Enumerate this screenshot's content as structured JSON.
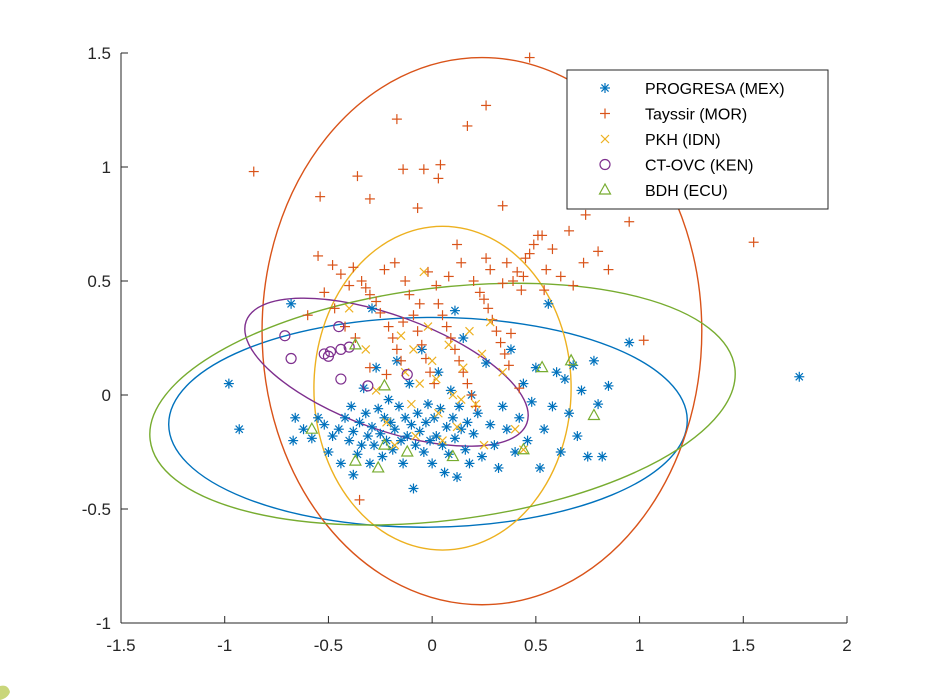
{
  "chart_data": {
    "type": "scatter",
    "title": "",
    "xlabel": "",
    "ylabel": "",
    "xlim": [
      -1.5,
      2
    ],
    "ylim": [
      -1,
      1.5
    ],
    "xticks": [
      "-1.5",
      "-1",
      "-0.5",
      "0",
      "0.5",
      "1",
      "1.5",
      "2"
    ],
    "yticks": [
      "-1",
      "-0.5",
      "0",
      "0.5",
      "1",
      "1.5"
    ],
    "grid": false,
    "legend_position": "top-right",
    "series": [
      {
        "name": "PROGRESA (MEX)",
        "marker": "asterisk",
        "color": "#0072BD",
        "points": [
          [
            -0.98,
            0.05
          ],
          [
            -0.93,
            -0.15
          ],
          [
            -0.68,
            0.4
          ],
          [
            -0.66,
            -0.1
          ],
          [
            -0.67,
            -0.2
          ],
          [
            -0.62,
            -0.15
          ],
          [
            -0.58,
            -0.19
          ],
          [
            -0.55,
            -0.1
          ],
          [
            -0.52,
            -0.13
          ],
          [
            -0.5,
            -0.25
          ],
          [
            -0.48,
            -0.18
          ],
          [
            -0.45,
            -0.15
          ],
          [
            -0.44,
            -0.3
          ],
          [
            -0.42,
            -0.1
          ],
          [
            -0.4,
            -0.2
          ],
          [
            -0.39,
            -0.05
          ],
          [
            -0.38,
            -0.16
          ],
          [
            -0.36,
            -0.26
          ],
          [
            -0.35,
            -0.12
          ],
          [
            -0.34,
            -0.22
          ],
          [
            -0.33,
            0.03
          ],
          [
            -0.32,
            -0.08
          ],
          [
            -0.31,
            -0.18
          ],
          [
            -0.3,
            -0.3
          ],
          [
            -0.29,
            -0.14
          ],
          [
            -0.28,
            -0.22
          ],
          [
            -0.27,
            0.12
          ],
          [
            -0.26,
            -0.06
          ],
          [
            -0.25,
            -0.17
          ],
          [
            -0.24,
            -0.27
          ],
          [
            -0.23,
            -0.1
          ],
          [
            -0.22,
            -0.2
          ],
          [
            -0.21,
            -0.02
          ],
          [
            -0.2,
            -0.12
          ],
          [
            -0.19,
            -0.24
          ],
          [
            -0.18,
            -0.15
          ],
          [
            -0.17,
            0.15
          ],
          [
            -0.16,
            -0.05
          ],
          [
            -0.15,
            -0.2
          ],
          [
            -0.14,
            -0.3
          ],
          [
            -0.13,
            -0.1
          ],
          [
            -0.12,
            -0.18
          ],
          [
            -0.11,
            0.05
          ],
          [
            -0.1,
            -0.13
          ],
          [
            -0.09,
            -0.41
          ],
          [
            -0.08,
            -0.22
          ],
          [
            -0.07,
            -0.08
          ],
          [
            -0.06,
            -0.16
          ],
          [
            -0.05,
            0.2
          ],
          [
            -0.04,
            -0.25
          ],
          [
            -0.03,
            -0.12
          ],
          [
            -0.02,
            -0.04
          ],
          [
            -0.01,
            -0.2
          ],
          [
            0.0,
            -0.3
          ],
          [
            0.01,
            -0.1
          ],
          [
            0.02,
            -0.18
          ],
          [
            0.03,
            0.1
          ],
          [
            0.04,
            -0.06
          ],
          [
            0.05,
            -0.22
          ],
          [
            0.06,
            -0.34
          ],
          [
            0.07,
            -0.14
          ],
          [
            0.08,
            -0.26
          ],
          [
            0.09,
            0.02
          ],
          [
            0.1,
            -0.1
          ],
          [
            0.11,
            -0.19
          ],
          [
            0.12,
            -0.36
          ],
          [
            0.13,
            -0.05
          ],
          [
            0.14,
            -0.15
          ],
          [
            0.15,
            0.25
          ],
          [
            0.16,
            -0.24
          ],
          [
            0.17,
            -0.12
          ],
          [
            0.18,
            -0.3
          ],
          [
            0.19,
            0.0
          ],
          [
            0.2,
            -0.17
          ],
          [
            0.22,
            -0.08
          ],
          [
            0.24,
            -0.27
          ],
          [
            0.26,
            0.14
          ],
          [
            0.28,
            -0.13
          ],
          [
            0.3,
            -0.22
          ],
          [
            0.32,
            -0.32
          ],
          [
            0.34,
            -0.05
          ],
          [
            0.36,
            -0.15
          ],
          [
            0.38,
            0.2
          ],
          [
            0.4,
            -0.25
          ],
          [
            0.42,
            -0.1
          ],
          [
            0.44,
            0.05
          ],
          [
            0.46,
            -0.2
          ],
          [
            0.48,
            -0.03
          ],
          [
            0.5,
            0.12
          ],
          [
            0.52,
            -0.32
          ],
          [
            0.54,
            -0.15
          ],
          [
            0.56,
            0.4
          ],
          [
            0.58,
            -0.05
          ],
          [
            0.6,
            0.1
          ],
          [
            0.62,
            -0.25
          ],
          [
            0.64,
            0.07
          ],
          [
            0.66,
            -0.08
          ],
          [
            0.68,
            0.13
          ],
          [
            0.7,
            -0.18
          ],
          [
            0.72,
            0.02
          ],
          [
            0.75,
            -0.27
          ],
          [
            0.78,
            0.15
          ],
          [
            0.8,
            -0.04
          ],
          [
            0.82,
            -0.27
          ],
          [
            0.85,
            0.04
          ],
          [
            0.95,
            0.23
          ],
          [
            1.77,
            0.08
          ],
          [
            -0.29,
            0.38
          ],
          [
            0.11,
            0.37
          ],
          [
            -0.38,
            -0.35
          ]
        ]
      },
      {
        "name": "Tayssir (MOR)",
        "marker": "plus",
        "color": "#D95319",
        "points": [
          [
            -0.86,
            0.98
          ],
          [
            -0.54,
            0.87
          ],
          [
            -0.36,
            0.96
          ],
          [
            -0.3,
            0.86
          ],
          [
            -0.17,
            1.21
          ],
          [
            -0.14,
            0.99
          ],
          [
            -0.07,
            0.82
          ],
          [
            -0.04,
            0.99
          ],
          [
            0.03,
            0.95
          ],
          [
            0.04,
            1.01
          ],
          [
            0.17,
            1.18
          ],
          [
            0.26,
            1.27
          ],
          [
            0.34,
            0.83
          ],
          [
            0.47,
            1.48
          ],
          [
            0.53,
            0.7
          ],
          [
            0.66,
            0.72
          ],
          [
            0.74,
            0.79
          ],
          [
            0.95,
            0.76
          ],
          [
            1.55,
            0.67
          ],
          [
            -0.55,
            0.61
          ],
          [
            -0.48,
            0.57
          ],
          [
            -0.44,
            0.53
          ],
          [
            -0.38,
            0.56
          ],
          [
            -0.34,
            0.5
          ],
          [
            -0.32,
            0.47
          ],
          [
            -0.3,
            0.44
          ],
          [
            -0.27,
            0.41
          ],
          [
            -0.25,
            0.36
          ],
          [
            -0.23,
            0.55
          ],
          [
            -0.21,
            0.3
          ],
          [
            -0.19,
            0.25
          ],
          [
            -0.17,
            0.2
          ],
          [
            -0.15,
            0.15
          ],
          [
            -0.13,
            0.5
          ],
          [
            -0.11,
            0.44
          ],
          [
            -0.09,
            0.35
          ],
          [
            -0.07,
            0.28
          ],
          [
            -0.05,
            0.22
          ],
          [
            -0.03,
            0.16
          ],
          [
            -0.01,
            0.1
          ],
          [
            0.01,
            0.05
          ],
          [
            0.03,
            0.4
          ],
          [
            0.05,
            0.35
          ],
          [
            0.07,
            0.3
          ],
          [
            0.09,
            0.25
          ],
          [
            0.11,
            0.2
          ],
          [
            0.13,
            0.15
          ],
          [
            0.15,
            0.1
          ],
          [
            0.17,
            0.05
          ],
          [
            0.19,
            0.0
          ],
          [
            0.21,
            -0.05
          ],
          [
            0.23,
            0.45
          ],
          [
            0.25,
            0.42
          ],
          [
            0.27,
            0.38
          ],
          [
            0.29,
            0.33
          ],
          [
            0.31,
            0.28
          ],
          [
            0.33,
            0.23
          ],
          [
            0.35,
            0.18
          ],
          [
            0.37,
            0.13
          ],
          [
            0.39,
            0.5
          ],
          [
            0.41,
            0.54
          ],
          [
            0.43,
            0.46
          ],
          [
            0.45,
            0.6
          ],
          [
            0.47,
            0.62
          ],
          [
            0.49,
            0.66
          ],
          [
            0.51,
            0.7
          ],
          [
            0.55,
            0.55
          ],
          [
            0.58,
            0.64
          ],
          [
            0.62,
            0.52
          ],
          [
            0.68,
            0.48
          ],
          [
            0.73,
            0.58
          ],
          [
            0.8,
            0.63
          ],
          [
            0.85,
            0.55
          ],
          [
            1.02,
            0.24
          ],
          [
            -0.52,
            0.45
          ],
          [
            -0.47,
            0.38
          ],
          [
            -0.42,
            0.3
          ],
          [
            -0.37,
            0.25
          ],
          [
            -0.35,
            -0.46
          ],
          [
            -0.3,
            0.12
          ],
          [
            -0.22,
            0.09
          ],
          [
            -0.14,
            0.32
          ],
          [
            -0.06,
            0.4
          ],
          [
            -0.02,
            0.54
          ],
          [
            0.02,
            0.48
          ],
          [
            0.08,
            0.52
          ],
          [
            0.14,
            0.58
          ],
          [
            0.2,
            0.5
          ],
          [
            0.28,
            0.55
          ],
          [
            0.34,
            0.49
          ],
          [
            0.38,
            0.27
          ],
          [
            0.42,
            0.03
          ],
          [
            -0.6,
            0.35
          ],
          [
            -0.4,
            0.48
          ],
          [
            -0.18,
            0.58
          ],
          [
            0.12,
            0.66
          ],
          [
            0.26,
            0.6
          ],
          [
            0.36,
            0.58
          ],
          [
            0.44,
            0.52
          ],
          [
            0.54,
            0.46
          ]
        ]
      },
      {
        "name": "PKH (IDN)",
        "marker": "x",
        "color": "#EDB120",
        "points": [
          [
            -0.4,
            0.38
          ],
          [
            -0.32,
            0.2
          ],
          [
            -0.27,
            0.02
          ],
          [
            -0.22,
            -0.12
          ],
          [
            -0.18,
            -0.22
          ],
          [
            -0.15,
            0.26
          ],
          [
            -0.13,
            0.1
          ],
          [
            -0.1,
            -0.04
          ],
          [
            -0.08,
            -0.18
          ],
          [
            -0.06,
            0.05
          ],
          [
            -0.04,
            0.54
          ],
          [
            -0.02,
            0.3
          ],
          [
            0.0,
            0.15
          ],
          [
            0.03,
            -0.08
          ],
          [
            0.05,
            -0.2
          ],
          [
            0.08,
            0.22
          ],
          [
            0.1,
            0.0
          ],
          [
            0.12,
            -0.14
          ],
          [
            0.15,
            0.12
          ],
          [
            0.18,
            0.28
          ],
          [
            0.21,
            -0.04
          ],
          [
            0.25,
            -0.22
          ],
          [
            0.28,
            0.32
          ],
          [
            0.34,
            0.1
          ],
          [
            0.4,
            -0.15
          ],
          [
            0.44,
            -0.24
          ],
          [
            -0.09,
            0.2
          ],
          [
            0.02,
            0.07
          ],
          [
            0.14,
            -0.02
          ],
          [
            0.24,
            0.18
          ]
        ]
      },
      {
        "name": "CT-OVC (KEN)",
        "marker": "circle",
        "color": "#7E2F8E",
        "points": [
          [
            -0.71,
            0.26
          ],
          [
            -0.68,
            0.16
          ],
          [
            -0.52,
            0.18
          ],
          [
            -0.5,
            0.17
          ],
          [
            -0.49,
            0.19
          ],
          [
            -0.45,
            0.3
          ],
          [
            -0.44,
            0.2
          ],
          [
            -0.44,
            0.07
          ],
          [
            -0.4,
            0.21
          ],
          [
            -0.31,
            0.04
          ],
          [
            -0.12,
            0.09
          ]
        ]
      },
      {
        "name": "BDH (ECU)",
        "marker": "triangle",
        "color": "#77AC30",
        "points": [
          [
            -0.58,
            -0.15
          ],
          [
            -0.37,
            -0.29
          ],
          [
            -0.37,
            0.22
          ],
          [
            -0.26,
            -0.32
          ],
          [
            -0.23,
            -0.22
          ],
          [
            -0.23,
            0.04
          ],
          [
            -0.12,
            -0.25
          ],
          [
            0.1,
            -0.27
          ],
          [
            0.44,
            -0.24
          ],
          [
            0.53,
            0.12
          ],
          [
            0.67,
            0.15
          ],
          [
            0.78,
            -0.09
          ]
        ]
      }
    ],
    "ellipses": [
      {
        "series": "PROGRESA (MEX)",
        "color": "#0072BD",
        "center": [
          -0.02,
          -0.12
        ],
        "semi_axes": [
          1.25,
          0.46
        ],
        "angle_deg": 0.5
      },
      {
        "series": "Tayssir (MOR)",
        "color": "#D95319",
        "center": [
          0.24,
          0.28
        ],
        "semi_axes": [
          1.2,
          0.0
        ],
        "angle_deg": 0,
        "rx": 1.06,
        "ry": 1.2
      },
      {
        "series": "PKH (IDN)",
        "color": "#EDB120",
        "center": [
          0.05,
          0.03
        ],
        "semi_axes": [
          0.62,
          0.71
        ],
        "angle_deg": 0
      },
      {
        "series": "CT-OVC (KEN)",
        "color": "#7E2F8E",
        "center": [
          -0.22,
          0.1
        ],
        "semi_axes": [
          0.72,
          0.25
        ],
        "angle_deg": -20
      },
      {
        "series": "BDH (ECU)",
        "color": "#77AC30",
        "center": [
          0.05,
          -0.04
        ],
        "semi_axes": [
          1.42,
          0.51
        ],
        "angle_deg": 7
      }
    ]
  }
}
